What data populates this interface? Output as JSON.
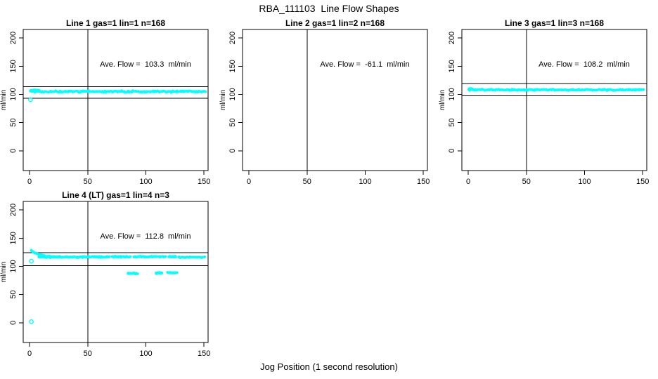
{
  "figure_title": "RBA_111103  Line Flow Shapes",
  "x_axis_label": "Jog Position (1 second resolution)",
  "colors": {
    "points": "#00FFFF",
    "axis": "#000000",
    "background": "#FFFFFF",
    "text": "#000000"
  },
  "chart_data": [
    {
      "type": "scatter",
      "title": "Line 1 gas=1 lin=1 n=168",
      "annotation": "Ave. Flow =  103.3  ml/min",
      "ave_flow_ml_min": 103.3,
      "n_points": 168,
      "ylabel": "ml/min",
      "xticks": [
        0,
        50,
        100,
        150
      ],
      "yticks": [
        0,
        50,
        100,
        150,
        200
      ],
      "xlim": [
        -5.5,
        153.5
      ],
      "ylim": [
        -35,
        215
      ],
      "vline_x": 50,
      "hlines": [
        93.0,
        113.6
      ],
      "series": [
        {
          "kind": "band",
          "x0": 1,
          "x1": 151,
          "y": 105,
          "spread": 1.8,
          "n": 175,
          "seed": 11
        },
        {
          "kind": "band",
          "x0": 1.5,
          "x1": 8,
          "y": 107,
          "spread": 1.5,
          "n": 14,
          "seed": 12
        }
      ],
      "outliers": [
        [
          0.8,
          90.5
        ]
      ]
    },
    {
      "type": "scatter",
      "title": "Line 2 gas=1 lin=2 n=168",
      "annotation": "Ave. Flow =  -61.1  ml/min",
      "ave_flow_ml_min": -61.1,
      "n_points": 168,
      "ylabel": "ml/min",
      "xticks": [
        0,
        50,
        100,
        150
      ],
      "yticks": [
        0,
        50,
        100,
        150,
        200
      ],
      "xlim": [
        -5.5,
        153.5
      ],
      "ylim": [
        -35,
        215
      ],
      "vline_x": 50,
      "hlines": [],
      "series": [],
      "outliers": []
    },
    {
      "type": "scatter",
      "title": "Line 3 gas=1 lin=3 n=168",
      "annotation": "Ave. Flow =  108.2  ml/min",
      "ave_flow_ml_min": 108.2,
      "n_points": 168,
      "ylabel": "ml/min",
      "xticks": [
        0,
        50,
        100,
        150
      ],
      "yticks": [
        0,
        50,
        100,
        150,
        200
      ],
      "xlim": [
        -5.5,
        153.5
      ],
      "ylim": [
        -35,
        215
      ],
      "vline_x": 50,
      "hlines": [
        97.4,
        119.0
      ],
      "series": [
        {
          "kind": "band",
          "x0": 1,
          "x1": 151,
          "y": 108,
          "spread": 1.5,
          "n": 175,
          "seed": 21
        },
        {
          "kind": "band",
          "x0": 0.5,
          "x1": 3.5,
          "y": 109.5,
          "spread": 2.0,
          "n": 10,
          "seed": 22
        }
      ],
      "outliers": []
    },
    {
      "type": "scatter",
      "title": "Line 4 (LT) gas=1 lin=4 n=3",
      "annotation": "Ave. Flow =  112.8  ml/min",
      "ave_flow_ml_min": 112.8,
      "n_points": 3,
      "ylabel": "ml/min",
      "xticks": [
        0,
        50,
        100,
        150
      ],
      "yticks": [
        0,
        50,
        100,
        150,
        200
      ],
      "xlim": [
        -5.5,
        153.5
      ],
      "ylim": [
        -35,
        215
      ],
      "vline_x": 50,
      "hlines": [
        101.5,
        124.1
      ],
      "series": [
        {
          "kind": "decay",
          "x0": 1.5,
          "x1": 26,
          "y_from": 129,
          "y_to": 116.5,
          "tau": 6,
          "spread": 1.2,
          "n": 45,
          "seed": 31
        },
        {
          "kind": "band",
          "x0": 8,
          "x1": 68.5,
          "y": 116.5,
          "spread": 1.3,
          "n": 85,
          "seed": 32
        },
        {
          "kind": "band",
          "x0": 71,
          "x1": 86.5,
          "y": 117,
          "spread": 1.4,
          "n": 26,
          "seed": 33
        },
        {
          "kind": "band",
          "x0": 89.5,
          "x1": 109.5,
          "y": 117,
          "spread": 1.4,
          "n": 32,
          "seed": 34
        },
        {
          "kind": "band",
          "x0": 111,
          "x1": 117,
          "y": 117,
          "spread": 1.2,
          "n": 11,
          "seed": 35
        },
        {
          "kind": "band",
          "x0": 119.5,
          "x1": 126,
          "y": 117,
          "spread": 1.2,
          "n": 12,
          "seed": 36
        },
        {
          "kind": "band",
          "x0": 128,
          "x1": 151,
          "y": 116,
          "spread": 1.0,
          "n": 26,
          "seed": 37
        },
        {
          "kind": "band",
          "x0": 84.5,
          "x1": 92.5,
          "y": 87.5,
          "spread": 1.1,
          "n": 16,
          "seed": 38
        },
        {
          "kind": "band",
          "x0": 108.5,
          "x1": 113.5,
          "y": 88,
          "spread": 1.1,
          "n": 10,
          "seed": 39
        },
        {
          "kind": "band",
          "x0": 119,
          "x1": 126.5,
          "y": 88.5,
          "spread": 1.2,
          "n": 15,
          "seed": 40
        }
      ],
      "outliers": [
        [
          1.5,
          109
        ],
        [
          1.5,
          2
        ]
      ]
    }
  ]
}
